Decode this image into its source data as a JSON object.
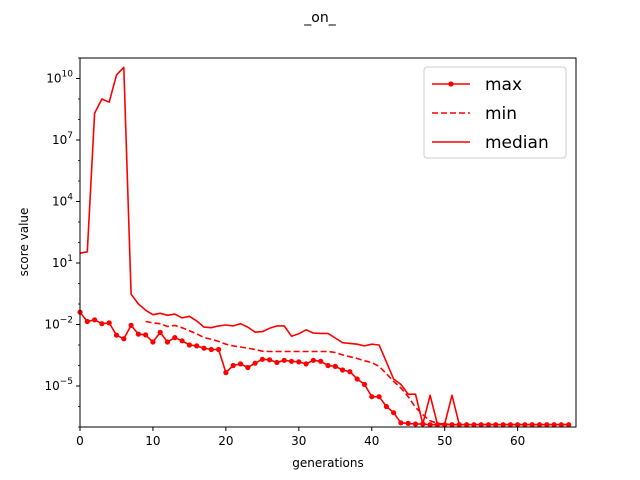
{
  "chart_data": {
    "type": "line",
    "title": "_on_",
    "xlabel": "generations",
    "ylabel": "score value",
    "xlim": [
      0,
      68
    ],
    "ylim": [
      1e-07,
      100000000000.0
    ],
    "yscale": "log",
    "x_ticks": [
      0,
      10,
      20,
      30,
      40,
      50,
      60
    ],
    "y_ticks": [
      {
        "value": 1e-05,
        "base": "10",
        "exp": "−5"
      },
      {
        "value": 0.01,
        "base": "10",
        "exp": "−2"
      },
      {
        "value": 10,
        "base": "10",
        "exp": "1"
      },
      {
        "value": 10000.0,
        "base": "10",
        "exp": "4"
      },
      {
        "value": 10000000.0,
        "base": "10",
        "exp": "7"
      },
      {
        "value": 10000000000.0,
        "base": "10",
        "exp": "10"
      }
    ],
    "grid": false,
    "legend_position": "upper-right",
    "color": "#ff0000",
    "series": [
      {
        "name": "max",
        "style": "solid-dot",
        "x": [
          0,
          1,
          2,
          3,
          4,
          5,
          6,
          7,
          8,
          9,
          10,
          11,
          12,
          13,
          14,
          15,
          16,
          17,
          18,
          19,
          20,
          21,
          22,
          23,
          24,
          25,
          26,
          27,
          28,
          29,
          30,
          31,
          32,
          33,
          34,
          35,
          36,
          37,
          38,
          39,
          40,
          41,
          42,
          43,
          44,
          45,
          46,
          47,
          48,
          49,
          50,
          51,
          52,
          53,
          54,
          55,
          56,
          57,
          58,
          59,
          60,
          61,
          62,
          63,
          64,
          65,
          66,
          67
        ],
        "values": [
          0.04,
          0.014,
          0.017,
          0.011,
          0.012,
          0.003,
          0.002,
          0.009,
          0.0034,
          0.0031,
          0.0014,
          0.0041,
          0.0014,
          0.0023,
          0.0016,
          0.001,
          0.0009,
          0.0007,
          0.0006,
          0.0006,
          4.5e-05,
          0.0001,
          0.00012,
          8e-05,
          0.00013,
          0.0002,
          0.00019,
          0.00014,
          0.00018,
          0.00016,
          0.00015,
          0.00012,
          0.00018,
          0.00016,
          0.0001,
          9e-05,
          6e-05,
          5e-05,
          2.2e-05,
          1.2e-05,
          3e-06,
          3e-06,
          1e-06,
          5e-07,
          1.6e-07,
          1.5e-07,
          1.4e-07,
          1.4e-07,
          1.3e-07,
          1.3e-07,
          1.3e-07,
          1.3e-07,
          1.3e-07,
          1.3e-07,
          1.3e-07,
          1.3e-07,
          1.3e-07,
          1.3e-07,
          1.3e-07,
          1.3e-07,
          1.3e-07,
          1.3e-07,
          1.3e-07,
          1.3e-07,
          1.3e-07,
          1.3e-07,
          1.3e-07,
          1.3e-07
        ]
      },
      {
        "name": "min",
        "style": "dashed",
        "x": [
          9,
          10,
          11,
          12,
          13,
          14,
          15,
          16,
          17,
          18,
          19,
          20,
          21,
          22,
          23,
          24,
          25,
          26,
          27,
          28,
          29,
          30,
          31,
          32,
          33,
          34,
          35,
          36,
          37,
          38,
          39,
          40,
          41,
          42,
          43,
          44,
          45,
          46,
          47,
          48,
          49,
          50,
          51,
          52,
          53,
          54,
          55,
          56,
          57,
          58,
          59,
          60,
          61,
          62,
          63,
          64,
          65,
          66,
          67
        ],
        "values": [
          0.014,
          0.012,
          0.011,
          0.008,
          0.009,
          0.007,
          0.005,
          0.0035,
          0.0023,
          0.0019,
          0.0015,
          0.0011,
          0.0009,
          0.0008,
          0.0007,
          0.0006,
          0.0005,
          0.00048,
          0.00048,
          0.00048,
          0.00048,
          0.00048,
          0.00048,
          0.00048,
          0.00048,
          0.00048,
          0.00043,
          0.00033,
          0.00027,
          0.00022,
          0.00017,
          0.00014,
          9e-05,
          4e-05,
          1.7e-05,
          8e-06,
          3e-06,
          9e-07,
          4e-07,
          2e-07,
          1.5e-07,
          1.4e-07,
          1.3e-07,
          1.3e-07,
          1.3e-07,
          1.3e-07,
          1.3e-07,
          1.3e-07,
          1.3e-07,
          1.3e-07,
          1.3e-07,
          1.3e-07,
          1.3e-07,
          1.3e-07,
          1.3e-07,
          1.3e-07,
          1.3e-07,
          1.3e-07,
          1.3e-07
        ]
      },
      {
        "name": "median",
        "style": "solid",
        "x": [
          0,
          1,
          2,
          3,
          4,
          5,
          6,
          7,
          8,
          9,
          10,
          11,
          12,
          13,
          14,
          15,
          16,
          17,
          18,
          19,
          20,
          21,
          22,
          23,
          24,
          25,
          26,
          27,
          28,
          29,
          30,
          31,
          32,
          33,
          34,
          35,
          36,
          37,
          38,
          39,
          40,
          41,
          42,
          43,
          44,
          45,
          46,
          47,
          48,
          49,
          50,
          51,
          52,
          53,
          54,
          55,
          56,
          57,
          58,
          59,
          60,
          61,
          62,
          63,
          64,
          65,
          66,
          67
        ],
        "values": [
          30,
          35,
          200000000,
          1000000000,
          700000000,
          15000000000,
          35000000000,
          0.3,
          0.1,
          0.05,
          0.03,
          0.035,
          0.028,
          0.032,
          0.021,
          0.025,
          0.015,
          0.0075,
          0.007,
          0.0085,
          0.0095,
          0.0085,
          0.011,
          0.0075,
          0.0042,
          0.0045,
          0.0065,
          0.0085,
          0.0085,
          0.0027,
          0.0035,
          0.0055,
          0.0038,
          0.0037,
          0.0037,
          0.0022,
          0.0013,
          0.0012,
          0.0011,
          0.0009,
          0.0011,
          0.001,
          0.00015,
          2.2e-05,
          1.2e-05,
          4e-06,
          4e-06,
          1.4e-07,
          3.5e-06,
          1.4e-07,
          1.4e-07,
          3.5e-06,
          1.3e-07,
          1.3e-07,
          1.3e-07,
          1.3e-07,
          1.3e-07,
          1.3e-07,
          1.3e-07,
          1.3e-07,
          1.3e-07,
          1.3e-07,
          1.3e-07,
          1.3e-07,
          1.3e-07,
          1.3e-07,
          1.3e-07,
          1.3e-07
        ]
      }
    ]
  }
}
